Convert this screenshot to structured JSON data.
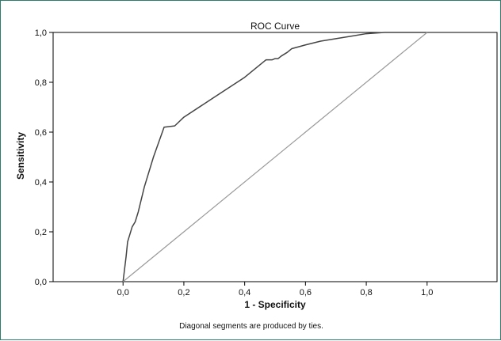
{
  "chart_data": {
    "type": "line",
    "title": "ROC Curve",
    "xlabel": "1 - Specificity",
    "ylabel": "Sensitivity",
    "footnote": "Diagonal segments are produced by ties.",
    "xlim": [
      -0.23,
      1.23
    ],
    "ylim": [
      0,
      1
    ],
    "x_ticks": [
      0.0,
      0.2,
      0.4,
      0.6,
      0.8,
      1.0
    ],
    "x_tick_labels": [
      "0,0",
      "0,2",
      "0,4",
      "0,6",
      "0,8",
      "1,0"
    ],
    "y_ticks": [
      0.0,
      0.2,
      0.4,
      0.6,
      0.8,
      1.0
    ],
    "y_tick_labels": [
      "0,0",
      "0,2",
      "0,4",
      "0,6",
      "0,8",
      "1,0"
    ],
    "grid": false,
    "series": [
      {
        "color": "#444444",
        "x": [
          0.0,
          0.01,
          0.015,
          0.02,
          0.03,
          0.04,
          0.05,
          0.07,
          0.1,
          0.135,
          0.17,
          0.2,
          0.3,
          0.4,
          0.47,
          0.49,
          0.5,
          0.51,
          0.52,
          0.54,
          0.555,
          0.6,
          0.65,
          0.7,
          0.75,
          0.8,
          0.86,
          0.9,
          1.0
        ],
        "y": [
          0.0,
          0.1,
          0.16,
          0.18,
          0.22,
          0.24,
          0.28,
          0.38,
          0.5,
          0.62,
          0.625,
          0.66,
          0.74,
          0.82,
          0.89,
          0.89,
          0.895,
          0.895,
          0.905,
          0.92,
          0.935,
          0.95,
          0.965,
          0.975,
          0.985,
          0.995,
          1.0,
          1.0,
          1.0
        ]
      },
      {
        "color": "#999999",
        "x": [
          0.0,
          1.0
        ],
        "y": [
          0.0,
          1.0
        ]
      }
    ]
  }
}
